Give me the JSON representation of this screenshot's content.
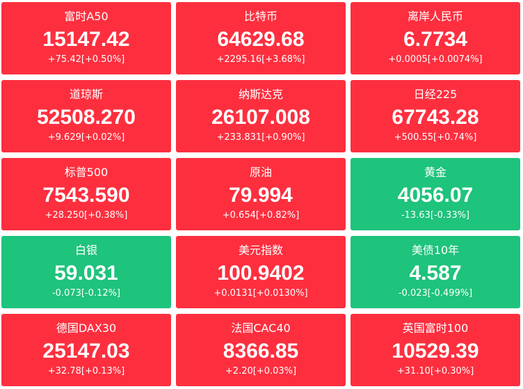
{
  "tiles": [
    {
      "name": "富时A50",
      "price": "15147.42",
      "change": "+75.42[+0.50%]",
      "color": "#fd2f3f"
    },
    {
      "name": "比特币",
      "price": "64629.68",
      "change": "+2295.16[+3.68%]",
      "color": "#fd2f3f"
    },
    {
      "name": "离岸人民币",
      "price": "6.7734",
      "change": "+0.0005[+0.0074%]",
      "color": "#fd2f3f"
    },
    {
      "name": "道琼斯",
      "price": "52508.270",
      "change": "+9.629[+0.02%]",
      "color": "#fd2f3f"
    },
    {
      "name": "纳斯达克",
      "price": "26107.008",
      "change": "+233.831[+0.90%]",
      "color": "#fd2f3f"
    },
    {
      "name": "日经225",
      "price": "67743.28",
      "change": "+500.55[+0.74%]",
      "color": "#fd2f3f"
    },
    {
      "name": "标普500",
      "price": "7543.590",
      "change": "+28.250[+0.38%]",
      "color": "#fd2f3f"
    },
    {
      "name": "原油",
      "price": "79.994",
      "change": "+0.654[+0.82%]",
      "color": "#fd2f3f"
    },
    {
      "name": "黄金",
      "price": "4056.07",
      "change": "-13.63[-0.33%]",
      "color": "#1ec37c"
    },
    {
      "name": "白银",
      "price": "59.031",
      "change": "-0.073[-0.12%]",
      "color": "#1ec37c"
    },
    {
      "name": "美元指数",
      "price": "100.9402",
      "change": "+0.0131[+0.0130%]",
      "color": "#fd2f3f"
    },
    {
      "name": "美债10年",
      "price": "4.587",
      "change": "-0.023[-0.499%]",
      "color": "#1ec37c"
    },
    {
      "name": "德国DAX30",
      "price": "25147.03",
      "change": "+32.78[+0.13%]",
      "color": "#fd2f3f"
    },
    {
      "name": "法国CAC40",
      "price": "8366.85",
      "change": "+2.20[+0.03%]",
      "color": "#fd2f3f"
    },
    {
      "name": "英国富时100",
      "price": "10529.39",
      "change": "+31.10[+0.30%]",
      "color": "#fd2f3f"
    }
  ]
}
